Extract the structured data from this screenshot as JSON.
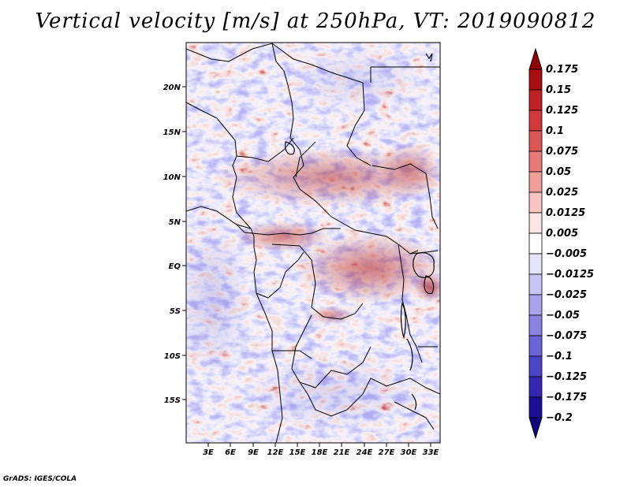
{
  "title": "Vertical velocity [m/s] at 250hPa, VT: 2019090812",
  "credit": "GrADS: IGES/COLA",
  "map": {
    "lat_ticks": [
      "20N",
      "15N",
      "10N",
      "5N",
      "EQ",
      "5S",
      "10S",
      "15S"
    ],
    "lon_ticks": [
      "3E",
      "6E",
      "9E",
      "12E",
      "15E",
      "18E",
      "21E",
      "24E",
      "27E",
      "30E",
      "33E"
    ]
  },
  "colorbar": {
    "labels": [
      "0.175",
      "0.15",
      "0.125",
      "0.1",
      "0.075",
      "0.05",
      "0.025",
      "0.0125",
      "0.005",
      "−0.005",
      "−0.0125",
      "−0.025",
      "−0.05",
      "−0.075",
      "−0.1",
      "−0.125",
      "−0.175",
      "−0.2"
    ],
    "colors": [
      "#8b0000",
      "#a80d12",
      "#bf2127",
      "#d03a3d",
      "#dc5858",
      "#e77a78",
      "#f0a09c",
      "#f7c6c2",
      "#fde7e4",
      "#ffffff",
      "#e6e4fb",
      "#c8c4f4",
      "#a9a3ec",
      "#8a83e2",
      "#6b63d6",
      "#4d45c8",
      "#3327b2",
      "#1c0f96",
      "#0f0478"
    ]
  },
  "colors": {
    "positive": "#c43a3a",
    "negative": "#6a63d8",
    "neutral": "#ffffff",
    "border": "#000000"
  }
}
